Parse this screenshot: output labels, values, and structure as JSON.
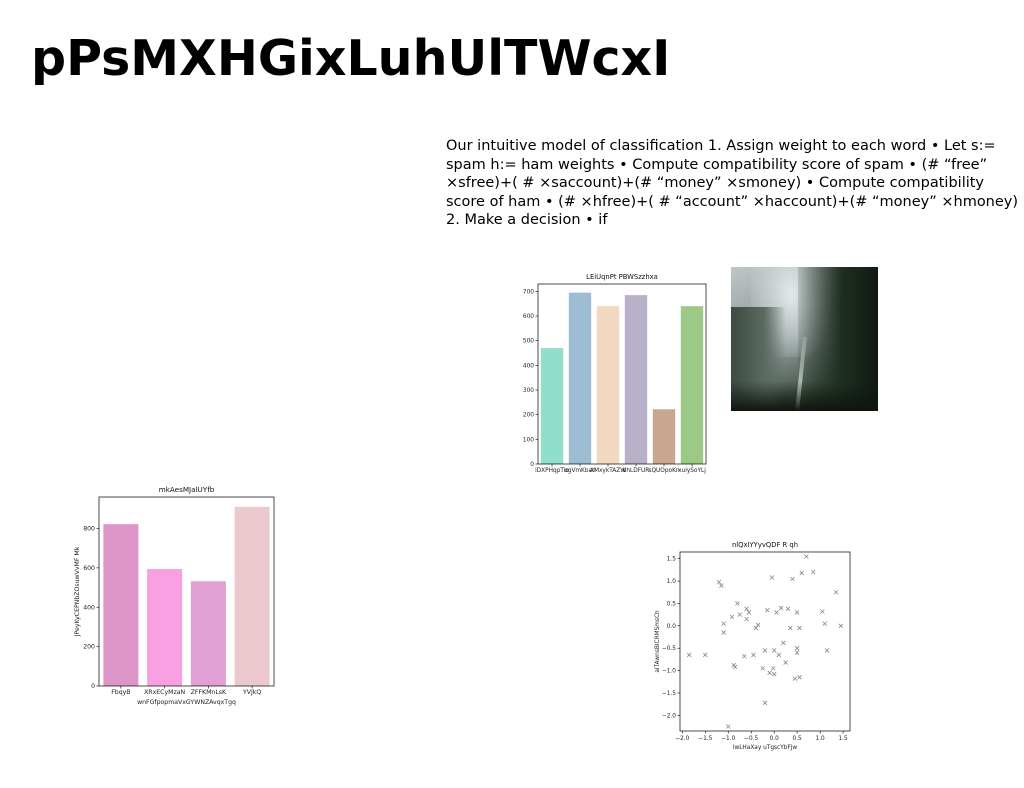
{
  "page": {
    "title": "pPsMXHGixLuhUlTWcxI",
    "body_text": "Our intuitive model of classification 1. Assign weight to each word • Let s:= spam h:= ham weights • Compute compatibility score of spam • (# “free” ×sfree)+( # ×saccount)+(# “money” ×smoney) • Compute compatibility score of ham • (# ×hfree)+( # “account” ×haccount)+(# “money” ×hmoney) 2. Make a decision • if"
  },
  "photo": {
    "subject": "misty forest road"
  },
  "chart_data": [
    {
      "id": "chart1",
      "type": "bar",
      "title": "LEiUqnPt PBWSzzhxa",
      "xlabel": "",
      "ylabel": "",
      "categories": [
        "iDXPHqpTio",
        "ogVmKban",
        "AMxykTAZW",
        "dhLDFUR",
        "sQUOpoKn",
        "xuiySoYLj"
      ],
      "values": [
        470,
        695,
        640,
        685,
        222,
        640
      ],
      "colors": [
        "#8fdfca",
        "#9dbdd4",
        "#f2d8c0",
        "#b9b1c9",
        "#c8a690",
        "#9dc986"
      ],
      "ylim": [
        0,
        730
      ],
      "yticks": [
        0,
        100,
        200,
        300,
        400,
        500,
        600,
        700
      ],
      "grid": false
    },
    {
      "id": "chart2",
      "type": "bar",
      "title": "mkAesMJalUYfb",
      "xlabel": "wnFGfpopmaVxGYWNZAvqxTgq",
      "ylabel": "JPeyKyCEPNbZOsuwVvMF Mk",
      "categories": [
        "FbqyB",
        "XRxECyMzaN",
        "ZFFKMnLsK",
        "YVJkQ"
      ],
      "values": [
        822,
        594,
        532,
        910
      ],
      "colors": [
        "#dc97c8",
        "#f9a0e2",
        "#e0a0d3",
        "#ecc9cf"
      ],
      "ylim": [
        0,
        960
      ],
      "yticks": [
        0,
        200,
        400,
        600,
        800
      ],
      "grid": false
    },
    {
      "id": "chart3",
      "type": "scatter",
      "title": "nlQxIYYyvQDF R qh",
      "xlabel": "lwLHaXay uTgscYbFjw",
      "ylabel": "aITAwnsBICRMSmsCh",
      "xlim": [
        -2.05,
        1.65
      ],
      "ylim": [
        -2.35,
        1.65
      ],
      "xticks": [
        -2.0,
        -1.5,
        -1.0,
        -0.5,
        0.0,
        0.5,
        1.0,
        1.5
      ],
      "yticks": [
        -2.0,
        -1.5,
        -1.0,
        -0.5,
        0.0,
        0.5,
        1.0,
        1.5
      ],
      "marker": "x",
      "color": "#888888",
      "grid": false,
      "x": [
        -1.85,
        -1.5,
        -1.2,
        -1.15,
        -1.1,
        -1.1,
        -1.0,
        -0.92,
        -0.88,
        -0.85,
        -0.8,
        -0.75,
        -0.65,
        -0.6,
        -0.6,
        -0.55,
        -0.45,
        -0.4,
        -0.35,
        -0.25,
        -0.2,
        -0.2,
        -0.15,
        -0.1,
        -0.05,
        -0.02,
        0.0,
        0.0,
        0.05,
        0.1,
        0.15,
        0.2,
        0.25,
        0.3,
        0.35,
        0.4,
        0.45,
        0.5,
        0.5,
        0.5,
        0.55,
        0.55,
        0.6,
        0.7,
        0.85,
        1.05,
        1.1,
        1.15,
        1.35,
        1.45
      ],
      "y": [
        -0.65,
        -0.65,
        0.98,
        0.9,
        0.05,
        -0.15,
        -2.25,
        0.2,
        -0.88,
        -0.92,
        0.5,
        0.25,
        -0.68,
        0.38,
        0.15,
        0.3,
        -0.65,
        -0.05,
        0.02,
        -0.95,
        -0.55,
        -1.72,
        0.35,
        -1.05,
        1.08,
        -0.95,
        -0.55,
        -1.08,
        0.3,
        -0.65,
        0.4,
        -0.38,
        -0.82,
        0.38,
        -0.05,
        1.05,
        -1.18,
        0.3,
        -0.5,
        -0.6,
        -1.15,
        -0.05,
        1.18,
        1.55,
        1.2,
        0.32,
        0.05,
        -0.55,
        0.75,
        0.0
      ]
    }
  ]
}
